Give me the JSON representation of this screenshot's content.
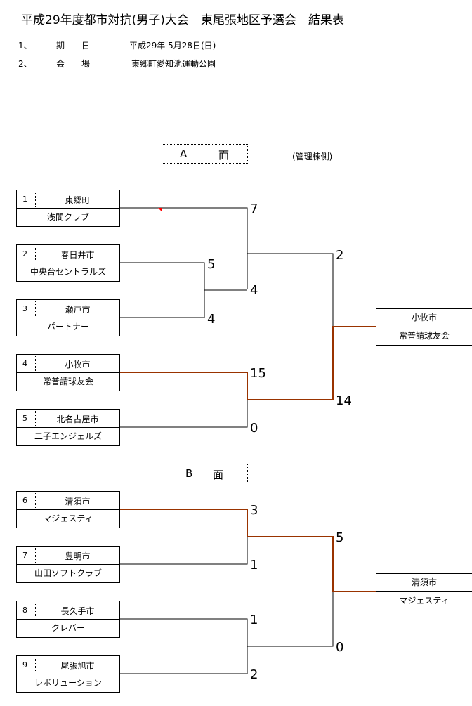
{
  "title": "平成29年度都市対抗(男子)大会　東尾張地区予選会　結果表",
  "info": [
    {
      "no": "1、",
      "label": "期　　日",
      "value": "平成29年  5月28日(日)"
    },
    {
      "no": "2、",
      "label": "会　　場",
      "value": "東郷町愛知池運動公園"
    }
  ],
  "section_a": {
    "letter": "A",
    "label": "面",
    "note": "(管理棟側)"
  },
  "section_b": {
    "letter": "B",
    "label": "面"
  },
  "teams": [
    {
      "num": "1",
      "city": "東郷町",
      "name": "浅間クラブ"
    },
    {
      "num": "2",
      "city": "春日井市",
      "name": "中央台セントラルズ"
    },
    {
      "num": "3",
      "city": "瀬戸市",
      "name": "パートナー"
    },
    {
      "num": "4",
      "city": "小牧市",
      "name": "常普請球友会"
    },
    {
      "num": "5",
      "city": "北名古屋市",
      "name": "二子エンジェルズ"
    },
    {
      "num": "6",
      "city": "清須市",
      "name": "マジェスティ"
    },
    {
      "num": "7",
      "city": "豊明市",
      "name": "山田ソフトクラブ"
    },
    {
      "num": "8",
      "city": "長久手市",
      "name": "クレバー"
    },
    {
      "num": "9",
      "city": "尾張旭市",
      "name": "レボリューション"
    }
  ],
  "winner_a": {
    "city": "小牧市",
    "name": "常普請球友会"
  },
  "winner_b": {
    "city": "清須市",
    "name": "マジェスティ"
  },
  "scores": {
    "s2": "5",
    "s3": "4",
    "s1": "7",
    "s23": "4",
    "s4": "15",
    "s5": "0",
    "sf1": "2",
    "sf2": "14",
    "s6": "3",
    "s7": "1",
    "s8": "1",
    "s9": "2",
    "sfb1": "5",
    "sfb2": "0"
  },
  "colors": {
    "winner_line": "#993300",
    "line": "#000000"
  }
}
